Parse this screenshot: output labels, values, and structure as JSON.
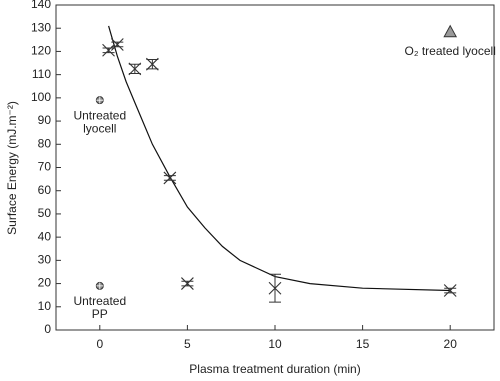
{
  "chart_data": {
    "type": "scatter",
    "xlabel": "Plasma treatment duration (min)",
    "ylabel": "Surface Energy (mJ.m⁻²)",
    "xlim": [
      -2.5,
      22.5
    ],
    "xticks": [
      0,
      5,
      10,
      15,
      20
    ],
    "ylim": [
      0,
      140
    ],
    "yticks": [
      0,
      10,
      20,
      30,
      40,
      50,
      60,
      70,
      80,
      90,
      100,
      110,
      120,
      130,
      140
    ],
    "color": "#333333",
    "series": [
      {
        "marker": "x",
        "x": [
          0.5,
          1,
          2,
          3,
          4,
          5,
          10,
          20
        ],
        "values": [
          120.5,
          123,
          112.5,
          114.5,
          65.5,
          20,
          18,
          17
        ],
        "errors": [
          1,
          1,
          2,
          2,
          1,
          1,
          6,
          1
        ]
      },
      {
        "marker": "circle-cross",
        "label": [
          "Untreated",
          "lyocell"
        ],
        "x": [
          0
        ],
        "values": [
          99
        ]
      },
      {
        "marker": "circle-cross",
        "label": [
          "Untreated",
          "PP"
        ],
        "x": [
          0
        ],
        "values": [
          19
        ]
      },
      {
        "marker": "triangle",
        "label": [
          "O₂ treated lyocell"
        ],
        "x": [
          20
        ],
        "values": [
          128.5
        ]
      }
    ],
    "fit": {
      "x": [
        0.5,
        1,
        1.5,
        2,
        3,
        4,
        5,
        6,
        7,
        8,
        10,
        12,
        15,
        20
      ],
      "values": [
        131,
        118,
        107,
        98,
        80,
        66,
        53,
        44,
        36,
        30,
        23,
        20,
        18,
        17
      ]
    }
  }
}
